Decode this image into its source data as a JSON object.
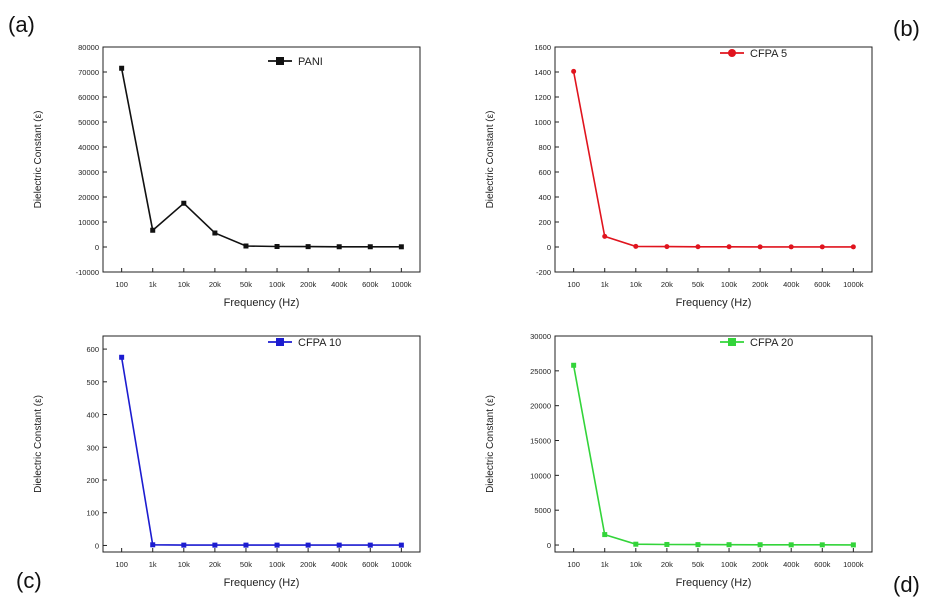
{
  "figure": {
    "panel_letters": [
      "(a)",
      "(b)",
      "(c)",
      "(d)"
    ]
  },
  "chart_data": [
    {
      "type": "line",
      "panel_label": "(a)",
      "xlabel": "Frequency (Hz)",
      "ylabel": "Dielectric Constant (ε)",
      "categories": [
        "100",
        "1k",
        "10k",
        "20k",
        "50k",
        "100k",
        "200k",
        "400k",
        "600k",
        "1000k"
      ],
      "yticks": [
        -10000,
        0,
        10000,
        20000,
        30000,
        40000,
        50000,
        60000,
        70000,
        80000
      ],
      "ylim": [
        -10000,
        80000
      ],
      "series": [
        {
          "name": "PANI",
          "color": "#111111",
          "values": [
            71500,
            6700,
            17500,
            5600,
            400,
            200,
            150,
            100,
            100,
            80
          ]
        }
      ],
      "legend_position": "top-right",
      "grid": false
    },
    {
      "type": "line",
      "panel_label": "(b)",
      "xlabel": "Frequency (Hz)",
      "ylabel": "Dielectric Constant (ε)",
      "categories": [
        "100",
        "1k",
        "10k",
        "20k",
        "50k",
        "100k",
        "200k",
        "400k",
        "600k",
        "1000k"
      ],
      "yticks": [
        -200,
        0,
        200,
        400,
        600,
        800,
        1000,
        1200,
        1400,
        1600
      ],
      "ylim": [
        -200,
        1600
      ],
      "series": [
        {
          "name": "CFPA 5",
          "color": "#e0141e",
          "values": [
            1405,
            85,
            5,
            3,
            2,
            2,
            1,
            1,
            1,
            1
          ]
        }
      ],
      "legend_position": "top-right",
      "grid": false
    },
    {
      "type": "line",
      "panel_label": "(c)",
      "xlabel": "Frequency (Hz)",
      "ylabel": "Dielectric Constant (ε)",
      "categories": [
        "100",
        "1k",
        "10k",
        "20k",
        "50k",
        "100k",
        "200k",
        "400k",
        "600k",
        "1000k"
      ],
      "yticks": [
        0,
        100,
        200,
        300,
        400,
        500,
        600
      ],
      "ylim": [
        -20,
        640
      ],
      "series": [
        {
          "name": "CFPA 10",
          "color": "#1c1cd0",
          "values": [
            575,
            2,
            1,
            1,
            1,
            1,
            1,
            1,
            1,
            1
          ]
        }
      ],
      "legend_position": "top-right",
      "grid": false
    },
    {
      "type": "line",
      "panel_label": "(d)",
      "xlabel": "Frequency (Hz)",
      "ylabel": "Dielectric Constant (ε)",
      "categories": [
        "100",
        "1k",
        "10k",
        "20k",
        "50k",
        "100k",
        "200k",
        "400k",
        "600k",
        "1000k"
      ],
      "yticks": [
        0,
        5000,
        10000,
        15000,
        20000,
        25000,
        30000
      ],
      "ylim": [
        -1000,
        30000
      ],
      "series": [
        {
          "name": "CFPA 20",
          "color": "#33d43a",
          "values": [
            25800,
            1500,
            120,
            80,
            60,
            50,
            40,
            30,
            30,
            20
          ]
        }
      ],
      "legend_position": "top-right",
      "grid": false
    }
  ]
}
